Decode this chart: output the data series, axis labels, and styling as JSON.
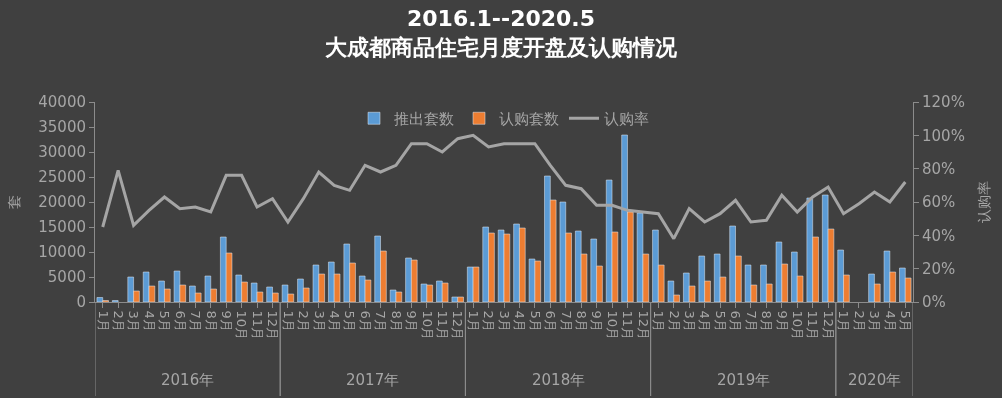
{
  "chart_data": {
    "type": "bar",
    "title": "2016.1--2020.5\n大成都商品住宅月度开盘及认购情况",
    "ylabel": "套",
    "y2label": "认购率",
    "categories": [
      "1月",
      "2月",
      "3月",
      "4月",
      "5月",
      "6月",
      "7月",
      "8月",
      "9月",
      "10月",
      "11月",
      "12月",
      "1月",
      "2月",
      "3月",
      "4月",
      "5月",
      "6月",
      "7月",
      "8月",
      "9月",
      "10月",
      "11月",
      "12月",
      "1月",
      "2月",
      "3月",
      "4月",
      "5月",
      "6月",
      "7月",
      "8月",
      "9月",
      "10月",
      "11月",
      "12月",
      "1月",
      "2月",
      "3月",
      "4月",
      "5月",
      "6月",
      "7月",
      "8月",
      "9月",
      "10月",
      "11月",
      "12月",
      "1月",
      "2月",
      "3月",
      "4月",
      "5月"
    ],
    "annotations": [
      "2016年",
      "2017年",
      "2018年",
      "2019年",
      "2020年"
    ],
    "series": [
      {
        "name": "推出套数",
        "color": "#5b9bd5",
        "values": [
          900,
          300,
          5000,
          6000,
          4200,
          6200,
          3200,
          5200,
          13000,
          5400,
          3800,
          3000,
          3400,
          4600,
          7400,
          8000,
          11600,
          5200,
          13200,
          2400,
          8800,
          3600,
          4200,
          1000,
          7000,
          15000,
          14400,
          15600,
          8600,
          25200,
          20000,
          14200,
          12600,
          24400,
          33400,
          17800,
          14400,
          4200,
          5800,
          9200,
          9600,
          15200,
          7400,
          7400,
          12000,
          10000,
          20800,
          21400,
          10400,
          null,
          5600,
          10200,
          6800
        ]
      },
      {
        "name": "认购套数",
        "color": "#ed7d31",
        "values": [
          300,
          null,
          2200,
          3200,
          2600,
          3400,
          1800,
          2600,
          9800,
          4000,
          2000,
          1800,
          1600,
          2800,
          5600,
          5600,
          7800,
          4400,
          10200,
          2000,
          8400,
          3400,
          3800,
          1000,
          7000,
          13800,
          13600,
          14800,
          8200,
          20400,
          13800,
          9600,
          7200,
          14000,
          18000,
          9600,
          7400,
          1400,
          3200,
          4200,
          5000,
          9200,
          3400,
          3600,
          7600,
          5200,
          13000,
          14600,
          5400,
          null,
          3600,
          6000,
          4800
        ]
      },
      {
        "name": "认购率",
        "type": "line",
        "axis": "y2",
        "color": "#a5a5a5",
        "values": [
          45,
          79,
          46,
          55,
          63,
          56,
          57,
          54,
          76,
          76,
          57,
          62,
          48,
          62,
          78,
          70,
          67,
          82,
          78,
          82,
          95,
          95,
          90,
          98,
          100,
          93,
          95,
          95,
          95,
          82,
          70,
          68,
          58,
          58,
          55,
          54,
          53,
          38,
          56,
          48,
          53,
          61,
          48,
          49,
          64,
          54,
          63,
          69,
          53,
          59,
          66,
          60,
          72
        ]
      }
    ],
    "ylim": [
      0,
      40000
    ],
    "yticks": [
      0,
      5000,
      10000,
      15000,
      20000,
      25000,
      30000,
      35000,
      40000
    ],
    "y2lim": [
      0,
      120
    ],
    "y2ticks": [
      {
        "value": 0,
        "label": "0%"
      },
      {
        "value": 20,
        "label": "20%"
      },
      {
        "value": 40,
        "label": "40%"
      },
      {
        "value": 60,
        "label": "60%"
      },
      {
        "value": 80,
        "label": "80%"
      },
      {
        "value": 100,
        "label": "100%"
      },
      {
        "value": 120,
        "label": "120%"
      }
    ],
    "legend": "top",
    "grid": false,
    "marker": "none",
    "line_style": "solid"
  }
}
